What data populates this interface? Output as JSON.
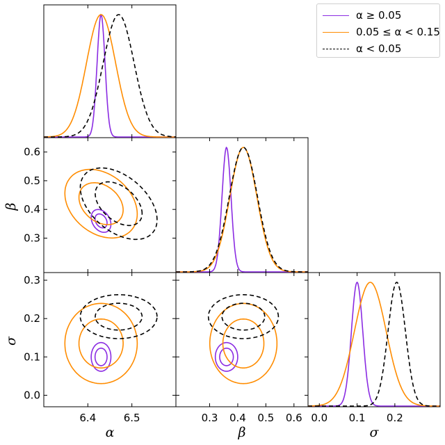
{
  "chart_data": {
    "type": "corner",
    "parameters": [
      "α",
      "β",
      "σ"
    ],
    "axis_labels": {
      "alpha": "α",
      "beta": "β",
      "sigma": "σ"
    },
    "axis_ranges": {
      "alpha": [
        6.3,
        6.6
      ],
      "beta": [
        0.18,
        0.65
      ],
      "sigma": [
        -0.03,
        0.32
      ]
    },
    "ticks": {
      "alpha_x": [
        {
          "v": 6.4,
          "label": "6.4"
        },
        {
          "v": 6.5,
          "label": "6.5"
        }
      ],
      "beta_y": [
        {
          "v": 0.3,
          "label": "0.3"
        },
        {
          "v": 0.4,
          "label": "0.4"
        },
        {
          "v": 0.5,
          "label": "0.5"
        },
        {
          "v": 0.6,
          "label": "0.6"
        }
      ],
      "beta_x": [
        {
          "v": 0.3,
          "label": "0.3"
        },
        {
          "v": 0.4,
          "label": "0.4"
        },
        {
          "v": 0.5,
          "label": "0.5"
        },
        {
          "v": 0.6,
          "label": "0.6"
        }
      ],
      "sigma_y": [
        {
          "v": 0.0,
          "label": "0.0"
        },
        {
          "v": 0.1,
          "label": "0.1"
        },
        {
          "v": 0.2,
          "label": "0.2"
        },
        {
          "v": 0.3,
          "label": "0.3"
        }
      ],
      "sigma_x": [
        {
          "v": 0.0,
          "label": "0.0"
        },
        {
          "v": 0.1,
          "label": "0.1"
        },
        {
          "v": 0.2,
          "label": "0.2"
        }
      ]
    },
    "legend_position": "top-right",
    "series": [
      {
        "name": "α ≥ 0.05",
        "color": "#8a2be2",
        "dash": "solid",
        "alpha": {
          "mean": 6.43,
          "sd": 0.009
        },
        "beta": {
          "mean": 0.36,
          "sd": 0.016
        },
        "sigma": {
          "mean": 0.1,
          "sd": 0.015
        },
        "corr_alpha_beta": -0.3
      },
      {
        "name": "0.05 ≤ α < 0.15",
        "color": "#ff8c00",
        "dash": "solid",
        "alpha": {
          "mean": 6.43,
          "sd": 0.033
        },
        "beta": {
          "mean": 0.42,
          "sd": 0.048
        },
        "sigma": {
          "mean": 0.135,
          "sd": 0.042
        },
        "corr_alpha_beta": -0.3
      },
      {
        "name": "α < 0.05",
        "color": "#000000",
        "dash": "dashed",
        "alpha": {
          "mean": 6.47,
          "sd": 0.035
        },
        "beta": {
          "mean": 0.42,
          "sd": 0.05
        },
        "sigma": {
          "mean": 0.205,
          "sd": 0.023
        },
        "corr_alpha_beta": -0.45
      }
    ]
  }
}
